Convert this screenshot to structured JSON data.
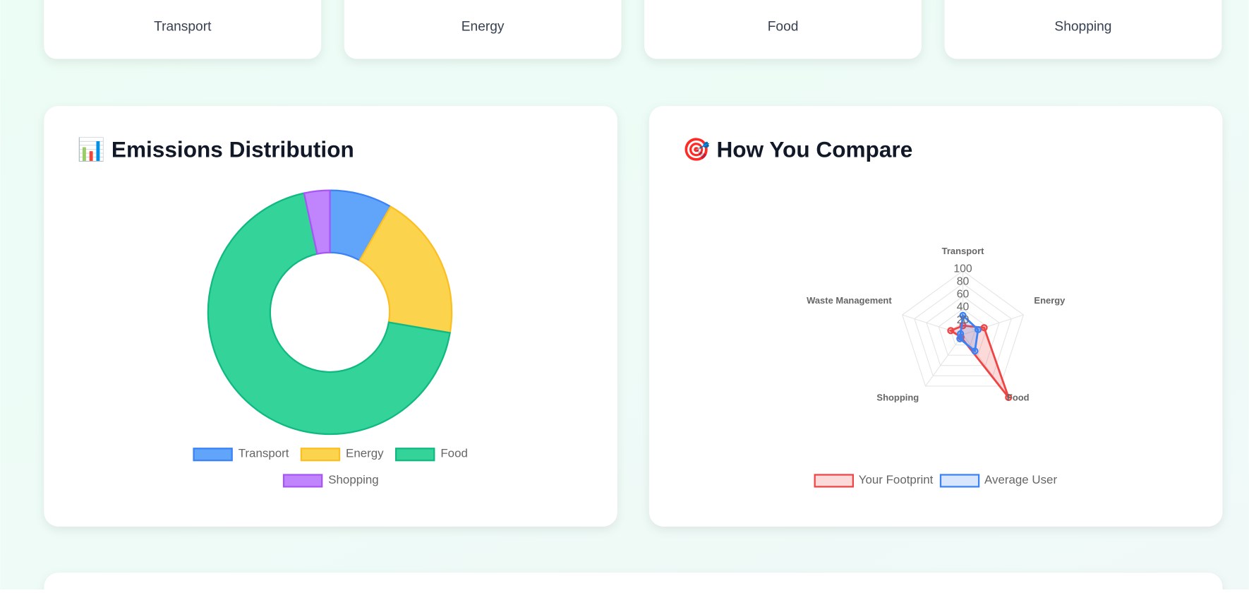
{
  "stat_cards": [
    {
      "label": "Transport"
    },
    {
      "label": "Energy"
    },
    {
      "label": "Food"
    },
    {
      "label": "Shopping"
    }
  ],
  "chart_data": [
    {
      "type": "doughnut",
      "title": "📊 Emissions Distribution",
      "categories": [
        "Transport",
        "Energy",
        "Food",
        "Shopping"
      ],
      "values": [
        8.3,
        19.4,
        68.9,
        3.4
      ],
      "colors": [
        "#60a5fa",
        "#fcd34d",
        "#34d399",
        "#c084fc"
      ],
      "border_colors": [
        "#3b82f6",
        "#fbbf24",
        "#10b981",
        "#a855f7"
      ]
    },
    {
      "type": "radar",
      "title": "🎯 How You Compare",
      "categories": [
        "Transport",
        "Energy",
        "Food",
        "Shopping",
        "Waste Management"
      ],
      "ylim": [
        0,
        100
      ],
      "yticks": [
        20,
        40,
        60,
        80,
        100
      ],
      "series": [
        {
          "name": "Your Footprint",
          "color": "#ef4444",
          "values": [
            14,
            35,
            122,
            5,
            20
          ]
        },
        {
          "name": "Average User",
          "color": "#3b82f6",
          "values": [
            30,
            25,
            32,
            8,
            4
          ]
        }
      ]
    }
  ]
}
